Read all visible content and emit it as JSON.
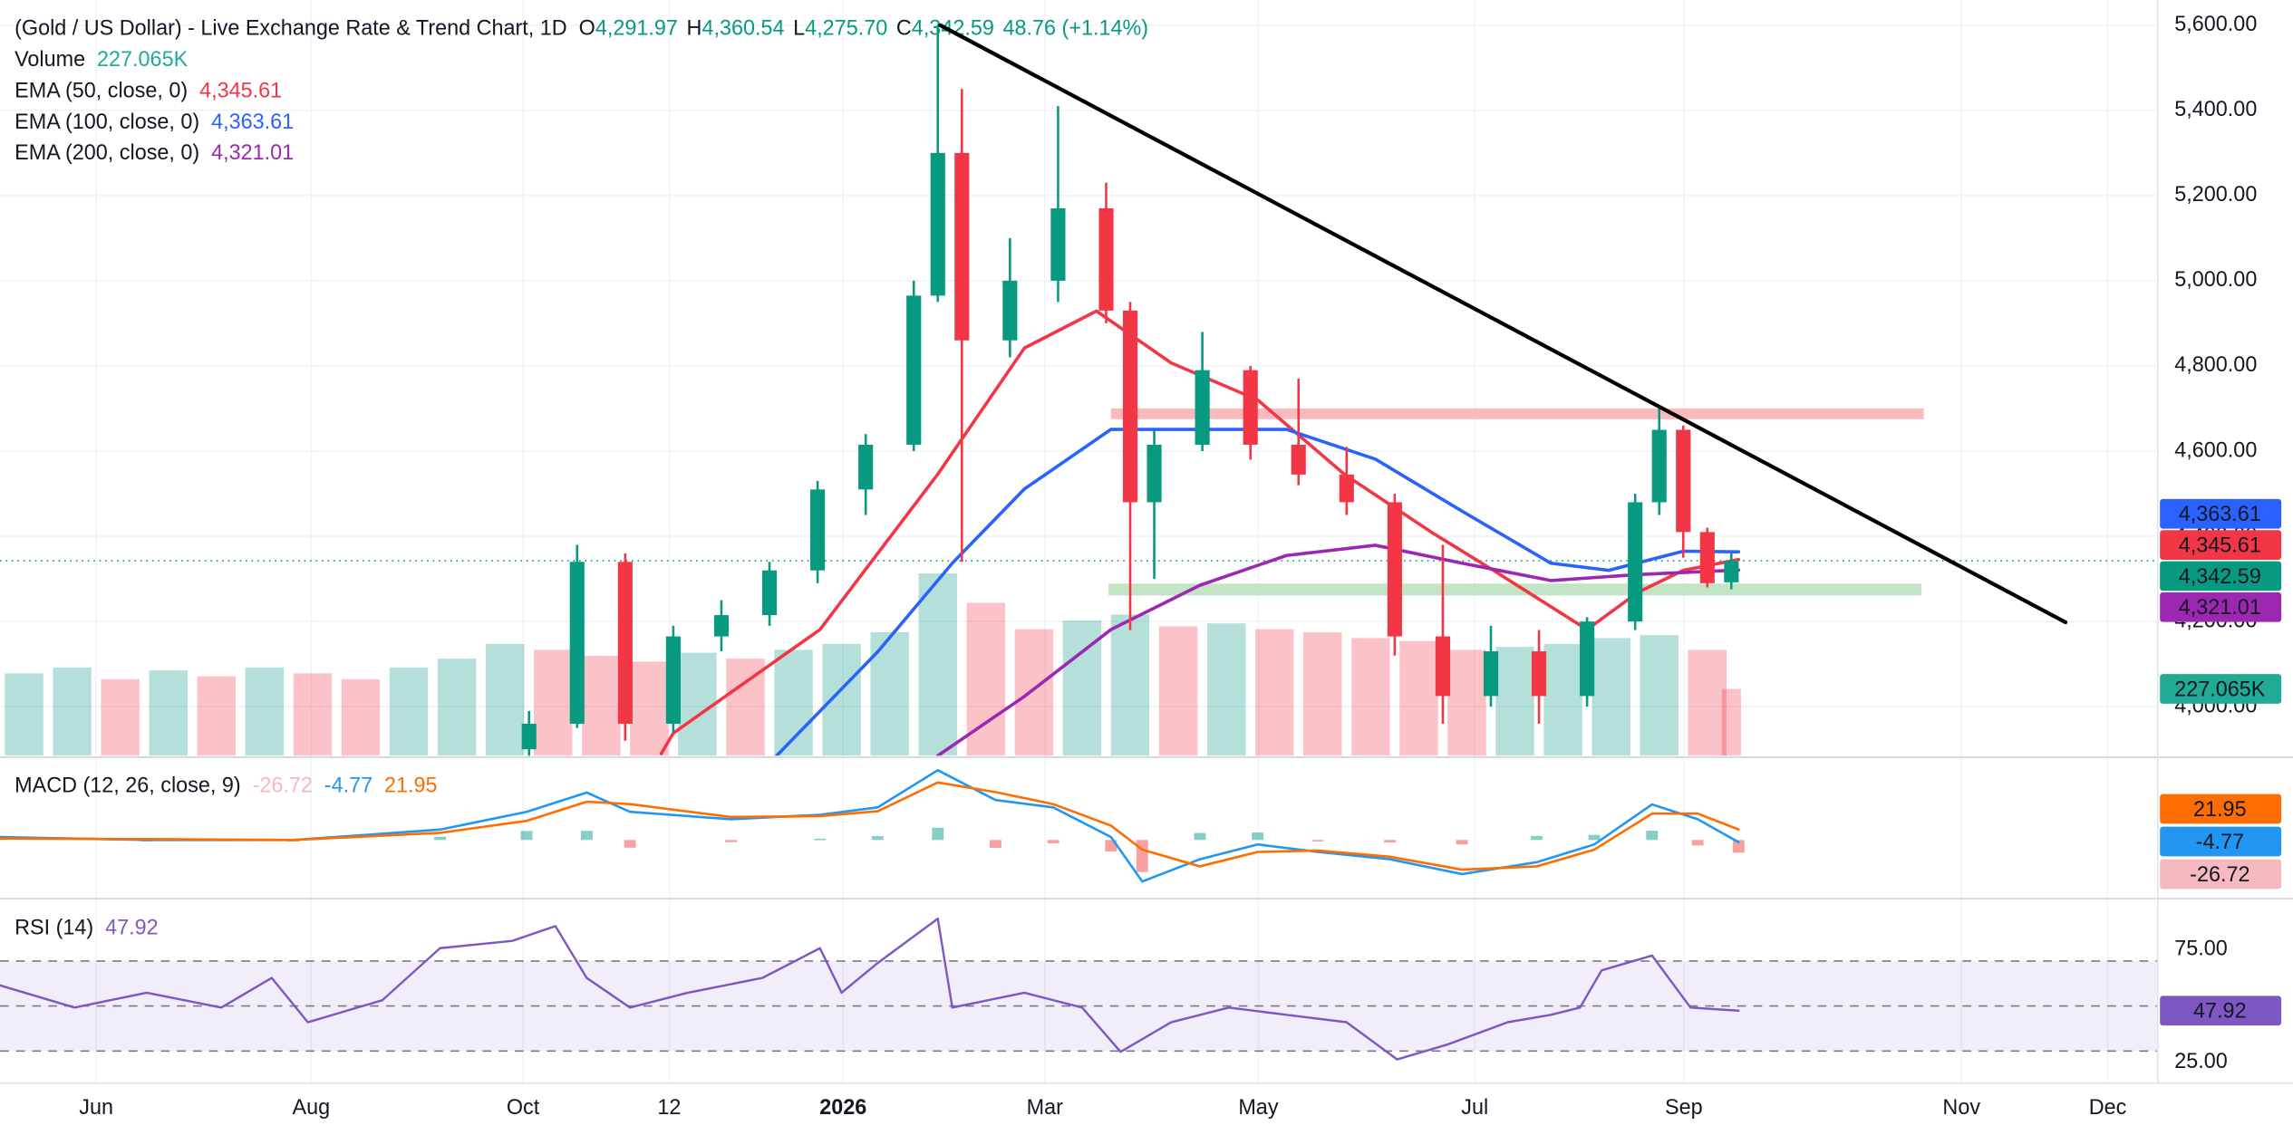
{
  "chart_data": {
    "type": "candlestick",
    "title": "(Gold / US Dollar) - Live Exchange Rate & Trend Chart, 1D",
    "ohlc_keys": [
      "O",
      "H",
      "L",
      "C"
    ],
    "ohlc_labels": [
      "4,291.97",
      "4,360.54",
      "4,275.70",
      "4,342.59"
    ],
    "change_label": "48.76 (+1.14%)",
    "xlim": [
      -4,
      85.7
    ],
    "xticks": [
      {
        "value": 0,
        "label": "Jun"
      },
      {
        "value": 8.94,
        "label": "Aug"
      },
      {
        "value": 17.75,
        "label": "Oct"
      },
      {
        "value": 23.83,
        "label": "12"
      },
      {
        "value": 31.06,
        "label": "2026"
      },
      {
        "value": 39.45,
        "label": "Mar"
      },
      {
        "value": 48.33,
        "label": "May"
      },
      {
        "value": 57.33,
        "label": "Jul"
      },
      {
        "value": 66.02,
        "label": "Sep"
      },
      {
        "value": 77.57,
        "label": "Nov"
      },
      {
        "value": 83.65,
        "label": "Dec"
      }
    ],
    "ylim": [
      3885,
      5659
    ],
    "yticks": [
      {
        "value": 4000,
        "label": "4,000.00"
      },
      {
        "value": 4200,
        "label": "4,200.00"
      },
      {
        "value": 4400,
        "label": "4,400.00"
      },
      {
        "value": 4600,
        "label": "4,600.00"
      },
      {
        "value": 4800,
        "label": "4,800.00"
      },
      {
        "value": 5000,
        "label": "5,000.00"
      },
      {
        "value": 5200,
        "label": "5,200.00"
      },
      {
        "value": 5400,
        "label": "5,400.00"
      },
      {
        "value": 5600,
        "label": "5,600.00"
      }
    ],
    "grid": true,
    "up_color": "#089981",
    "down_color": "#f23645",
    "candles": {
      "x": [
        18,
        20,
        22,
        24,
        26,
        28,
        30,
        32,
        34,
        35,
        36,
        38,
        40,
        42,
        43,
        44,
        46,
        48,
        50,
        52,
        54,
        56,
        58,
        60,
        62,
        64,
        65,
        66,
        67,
        68
      ],
      "open": [
        3900,
        3960,
        4340,
        3960,
        4165,
        4215,
        4320,
        4510,
        4615,
        4965,
        5300,
        4860,
        5000,
        5170,
        4930,
        4480,
        4615,
        4790,
        4615,
        4545,
        4480,
        4165,
        4025,
        4130,
        4025,
        4200,
        4480,
        4650,
        4410,
        4291.97
      ],
      "high": [
        3990,
        4380,
        4360,
        4190,
        4250,
        4340,
        4530,
        4640,
        5000,
        5600,
        5450,
        5100,
        5410,
        5230,
        4950,
        4650,
        4880,
        4800,
        4770,
        4610,
        4500,
        4380,
        4190,
        4180,
        4210,
        4500,
        4700,
        4660,
        4420,
        4360.54
      ],
      "low": [
        3880,
        3950,
        3920,
        3940,
        4130,
        4190,
        4290,
        4450,
        4600,
        4950,
        4340,
        4820,
        4950,
        4900,
        4180,
        4300,
        4600,
        4580,
        4520,
        4450,
        4120,
        3960,
        4000,
        3960,
        4000,
        4180,
        4450,
        4350,
        4280,
        4275.7
      ],
      "close": [
        3960,
        4340,
        3960,
        4165,
        4215,
        4320,
        4510,
        4615,
        4965,
        5300,
        4860,
        5000,
        5170,
        4930,
        4480,
        4615,
        4790,
        4615,
        4545,
        4480,
        4165,
        4025,
        4130,
        4025,
        4200,
        4480,
        4650,
        4410,
        4290,
        4342.59
      ]
    },
    "volume": {
      "name": "Volume",
      "color": "#22ab94",
      "ylim": [
        0,
        2570000
      ],
      "x": [
        -3,
        -1,
        1,
        3,
        5,
        7,
        9,
        11,
        13,
        15,
        17,
        19,
        21,
        23,
        25,
        27,
        29,
        31,
        33,
        35,
        37,
        39,
        41,
        43,
        45,
        47,
        49,
        51,
        53,
        55,
        57,
        59,
        61,
        63,
        65,
        67,
        68
      ],
      "values": [
        280000,
        300000,
        260000,
        290000,
        270000,
        300000,
        280000,
        260000,
        300000,
        330000,
        380000,
        360000,
        340000,
        320000,
        350000,
        330000,
        360000,
        380000,
        420000,
        620000,
        520000,
        430000,
        460000,
        480000,
        440000,
        450000,
        430000,
        420000,
        400000,
        390000,
        360000,
        370000,
        380000,
        400000,
        410000,
        360000,
        227065
      ],
      "last_label": "227.065K"
    },
    "series": [
      {
        "name": "EMA (50, close, 0)",
        "color": "#f23645",
        "x": [
          23.5,
          24.0,
          30.1,
          35.0,
          38.6,
          41.6,
          44.7,
          48.3,
          51.9,
          55.6,
          58.1,
          62.0,
          64.1,
          66.0,
          68.3
        ],
        "values": [
          3890,
          3938,
          4181,
          4546,
          4842,
          4929,
          4807,
          4720,
          4546,
          4407,
          4320,
          4181,
          4268,
          4320,
          4345.61
        ],
        "last_label": "4,345.61"
      },
      {
        "name": "EMA (100, close, 0)",
        "color": "#2962ff",
        "x": [
          28.3,
          32.5,
          35.6,
          38.6,
          42.2,
          45.9,
          49.5,
          53.2,
          56.8,
          60.5,
          62.9,
          66.0,
          68.3
        ],
        "values": [
          3885,
          4129,
          4337,
          4511,
          4651,
          4651,
          4651,
          4581,
          4459,
          4337,
          4320,
          4365,
          4363.61
        ],
        "last_label": "4,363.61"
      },
      {
        "name": "EMA (200, close, 0)",
        "color": "#9c27b0",
        "x": [
          35.0,
          38.6,
          42.2,
          45.9,
          49.5,
          53.2,
          56.8,
          60.5,
          64.1,
          68.3
        ],
        "values": [
          3885,
          4024,
          4181,
          4285,
          4355,
          4379,
          4337,
          4296,
          4310,
          4321.01
        ],
        "last_label": "4,321.01"
      }
    ],
    "trendline": {
      "x": [
        35.1,
        81.9
      ],
      "values": [
        5600,
        4198
      ],
      "color": "#000000"
    },
    "zones": [
      {
        "x": [
          42.2,
          76.0
        ],
        "values": [
          4675,
          4700
        ],
        "color": "#f7a9ad"
      },
      {
        "x": [
          42.1,
          75.9
        ],
        "values": [
          4261,
          4289
        ],
        "color": "#b5dfb7"
      }
    ],
    "macd": {
      "title": "MACD (12, 26, close, 9)",
      "ylim": [
        -118,
        170
      ],
      "x": [
        -4.0,
        2.1,
        8.2,
        14.3,
        17.9,
        20.4,
        22.2,
        26.4,
        30.1,
        32.5,
        35.0,
        37.4,
        39.8,
        42.2,
        43.5,
        45.9,
        48.3,
        50.8,
        53.8,
        56.8,
        59.9,
        62.3,
        64.7,
        66.6,
        68.3
      ],
      "histogram": {
        "color": "#f7b9c0",
        "up_color": "#26a69a",
        "down_color": "#ef5350",
        "values": [
          3.2,
          -2,
          0,
          6.7,
          18.9,
          19.2,
          -16.1,
          -4.6,
          2.7,
          8.2,
          25.7,
          -16.3,
          -6.8,
          -23.8,
          -66.8,
          14.7,
          15.7,
          -2.8,
          -5.3,
          -9.3,
          8.5,
          10.7,
          19.4,
          -11.6,
          -26.72
        ],
        "last_label": "-26.72"
      },
      "macd": {
        "color": "#2196f3",
        "values": [
          6.2,
          0,
          0,
          21.7,
          58.9,
          99.2,
          58.9,
          43.4,
          52.7,
          68.2,
          145.7,
          83.7,
          68.2,
          6.2,
          -86.8,
          -40.3,
          -9.3,
          -24.8,
          -40.3,
          -71.3,
          -46.5,
          -9.3,
          74.4,
          43.4,
          -4.77
        ],
        "last_label": "-4.77"
      },
      "signal": {
        "color": "#ff6d00",
        "values": [
          3,
          2,
          0,
          15,
          40,
          80,
          75,
          48,
          50,
          60,
          120,
          100,
          75,
          30,
          -20,
          -55,
          -25,
          -22,
          -35,
          -62,
          -55,
          -20,
          55,
          55,
          21.95
        ],
        "last_label": "21.95"
      }
    },
    "rsi": {
      "title": "RSI (14)",
      "color": "#7e57c2",
      "ylim": [
        16.4,
        96.7
      ],
      "yticks": [
        {
          "value": 75,
          "label": "75.00"
        },
        {
          "value": 25,
          "label": "25.00"
        }
      ],
      "bands": [
        70,
        50,
        30
      ],
      "x": [
        -4.0,
        -0.9,
        2.1,
        5.2,
        7.3,
        8.8,
        11.9,
        14.3,
        17.3,
        19.1,
        20.4,
        22.2,
        24.6,
        27.7,
        30.1,
        31.0,
        32.5,
        35.0,
        35.6,
        38.6,
        41.0,
        42.6,
        44.7,
        47.1,
        49.5,
        52.0,
        54.1,
        56.2,
        58.7,
        60.5,
        61.7,
        62.6,
        64.7,
        66.3,
        68.3
      ],
      "values": [
        59.2,
        49.3,
        55.9,
        49.3,
        62.5,
        42.8,
        52.6,
        75.7,
        78.9,
        85.5,
        62.5,
        49.3,
        55.9,
        62.5,
        75.7,
        55.9,
        69.1,
        88.8,
        49.3,
        55.9,
        49.3,
        29.6,
        42.8,
        49.3,
        46.1,
        42.8,
        26.3,
        32.9,
        42.8,
        46.1,
        49.3,
        65.8,
        72.4,
        49.3,
        47.92
      ],
      "last_label": "47.92"
    }
  }
}
